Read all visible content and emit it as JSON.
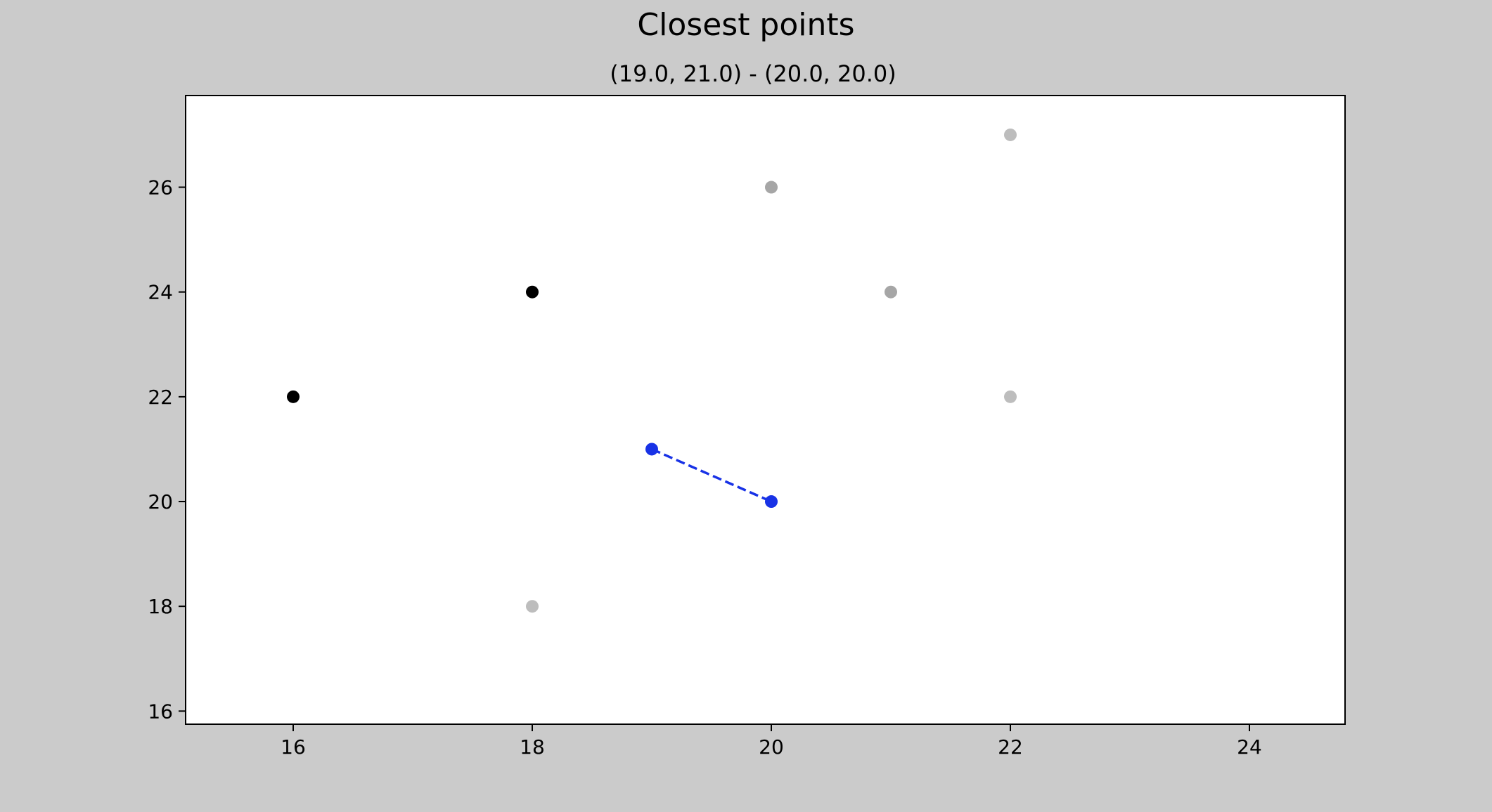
{
  "chart_data": {
    "type": "scatter",
    "title": "Closest points",
    "subtitle": "(19.0, 21.0) - (20.0, 20.0)",
    "xlabel": "",
    "ylabel": "",
    "xlim": [
      15.1,
      24.8
    ],
    "ylim": [
      15.75,
      27.75
    ],
    "x_ticks": [
      "16",
      "18",
      "20",
      "22",
      "24"
    ],
    "y_ticks": [
      "16",
      "18",
      "20",
      "22",
      "24",
      "26"
    ],
    "grid": false,
    "series": [
      {
        "color": "#000000",
        "points": [
          [
            16,
            22
          ],
          [
            18,
            24
          ]
        ]
      },
      {
        "color": "#a6a6a6",
        "points": [
          [
            20,
            26
          ],
          [
            21,
            24
          ]
        ]
      },
      {
        "color": "#bdbdbd",
        "points": [
          [
            22,
            27
          ],
          [
            22,
            22
          ],
          [
            18,
            18
          ]
        ]
      },
      {
        "color": "#1832e6",
        "points": [
          [
            19,
            21
          ],
          [
            20,
            20
          ]
        ]
      }
    ],
    "closest_pair": {
      "points": [
        [
          19.0,
          21.0
        ],
        [
          20.0,
          20.0
        ]
      ],
      "color": "#1832e6",
      "line_style": "dashed"
    }
  }
}
